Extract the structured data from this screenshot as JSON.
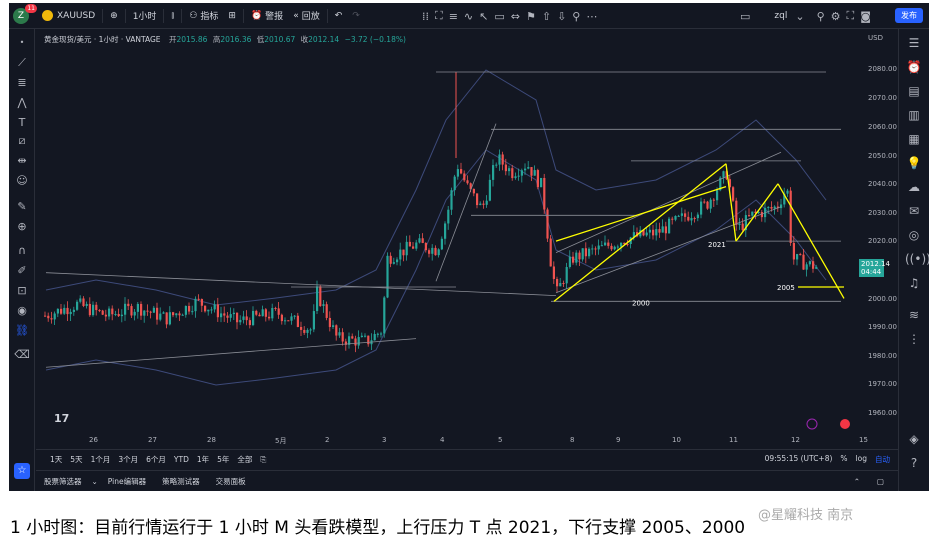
{
  "toolbar": {
    "avatar_letter": "Z",
    "notif_count": "11",
    "symbol": "XAUUSD",
    "interval": "1小时",
    "indicators": "指标",
    "alert": "警报",
    "replay": "回放",
    "layout_name": "zql",
    "publish": "发布"
  },
  "legend": {
    "title": "黄金现货/美元 · 1小时 · VANTAGE",
    "open_label": "开",
    "open": "2015.86",
    "high_label": "高",
    "high": "2016.36",
    "low_label": "低",
    "low": "2010.67",
    "close_label": "收",
    "close": "2012.14",
    "change": "−3.72 (−0.18%)"
  },
  "price_axis": {
    "currency": "USD",
    "labels": [
      "2080.00",
      "2070.00",
      "2060.00",
      "2050.00",
      "2040.00",
      "2030.00",
      "2020.00",
      "2000.00",
      "1990.00",
      "1980.00",
      "1970.00",
      "1960.00"
    ],
    "current_price": "2012.14",
    "countdown": "04:44"
  },
  "time_axis": [
    "26",
    "27",
    "28",
    "5月",
    "2",
    "3",
    "4",
    "5",
    "8",
    "9",
    "10",
    "11",
    "12",
    "15"
  ],
  "annotations": {
    "level_2021": "2021",
    "level_2000": "2000",
    "level_2005": "2005"
  },
  "range_bar": {
    "ranges": [
      "1天",
      "5天",
      "1个月",
      "3个月",
      "6个月",
      "YTD",
      "1年",
      "5年",
      "全部"
    ],
    "clock": "09:55:15 (UTC+8)",
    "percent": "%",
    "log": "log",
    "auto": "自动"
  },
  "bottom_tabs": [
    "股票筛选器",
    "Pine编辑器",
    "策略测试器",
    "交易面板"
  ],
  "caption": "1 小时图：目前行情运行于 1 小时 M 头看跌模型，上行压力 T 点 2021，下行支撑 2005、2000",
  "watermark": "@星耀科技 南京",
  "colors": {
    "bg": "#131722",
    "up": "#26a69a",
    "down": "#ef5350",
    "accent": "#2962ff",
    "annotation": "#ffff00"
  }
}
